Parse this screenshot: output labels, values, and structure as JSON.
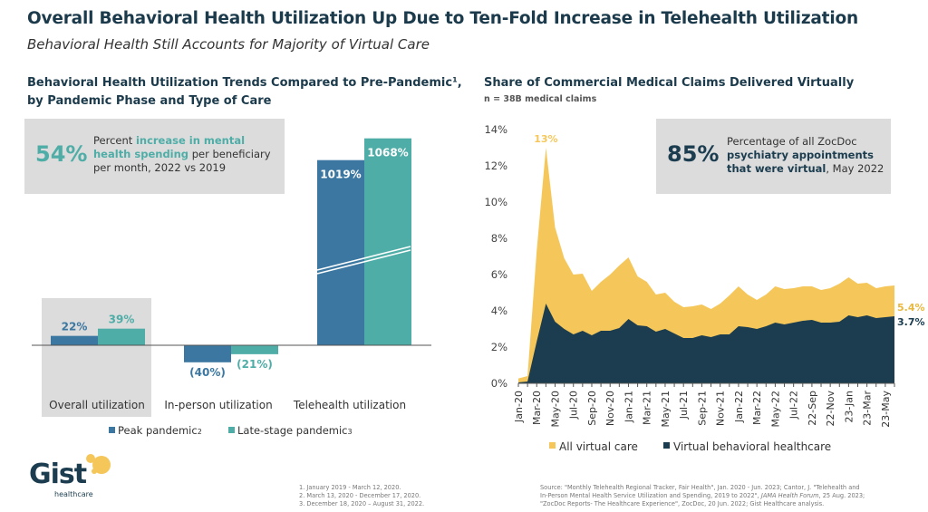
{
  "header": {
    "title": "Overall Behavioral Health Utilization Up Due to Ten-Fold Increase in Telehealth Utilization",
    "subtitle": "Behavioral Health Still Accounts for Majority of Virtual Care"
  },
  "colors": {
    "navy": "#1b3d4f",
    "yellow": "#f5c75a",
    "blue": "#3b77a0",
    "teal": "#4fada7",
    "gray": "#dcdcdc"
  },
  "left": {
    "heading_line1": "Behavioral Health Utilization Trends Compared to Pre-Pandemic¹,",
    "heading_line2": "by Pandemic Phase and Type of Care",
    "callout": {
      "value": "54%",
      "text_pre": "Percent ",
      "text_bold": "increase in mental health spending",
      "text_post": " per beneficiary per month, 2022 vs 2019"
    }
  },
  "right": {
    "heading": "Share of Commercial Medical Claims Delivered Virtually",
    "note": "n = 38B medical claims",
    "callout": {
      "value": "85%",
      "text_pre": "Percentage of all ZocDoc ",
      "text_bold": "psychiatry appointments that were virtual",
      "text_post": ", May 2022"
    }
  },
  "chart_data": [
    {
      "type": "bar",
      "categories": [
        "Overall utilization",
        "In-person utilization",
        "Telehealth utilization"
      ],
      "series": [
        {
          "name": "Peak pandemic",
          "footnote": "2",
          "values": [
            22,
            -40,
            1019
          ],
          "labels": [
            "22%",
            "(40%)",
            "1019%"
          ]
        },
        {
          "name": "Late-stage pandemic",
          "footnote": "3",
          "values": [
            39,
            -21,
            1068
          ],
          "labels": [
            "39%",
            "(21%)",
            "1068%"
          ]
        }
      ],
      "axis_break": "Telehealth utilization",
      "highlighted_category": "Overall utilization",
      "legend": "bottom"
    },
    {
      "type": "area",
      "x": [
        "Jan-20",
        "Feb-20",
        "Mar-20",
        "Apr-20",
        "May-20",
        "Jun-20",
        "Jul-20",
        "Aug-20",
        "Sep-20",
        "Oct-20",
        "Nov-20",
        "Dec-20",
        "Jan-21",
        "Feb-21",
        "Mar-21",
        "Apr-21",
        "May-21",
        "Jun-21",
        "Jul-21",
        "Aug-21",
        "Sep-21",
        "Oct-21",
        "Nov-21",
        "Dec-21",
        "Jan-22",
        "Feb-22",
        "Mar-22",
        "Apr-22",
        "May-22",
        "Jun-22",
        "Jul-22",
        "Aug-22",
        "22-Sep",
        "Oct-22",
        "22-Nov",
        "Dec-22",
        "23-Jan",
        "Feb-23",
        "23-Mar",
        "Apr-23",
        "23-May",
        "Jun-23"
      ],
      "tick_labels": [
        "Jan-20",
        "Mar-20",
        "May-20",
        "Jul-20",
        "Sep-20",
        "Nov-20",
        "Jan-21",
        "Mar-21",
        "May-21",
        "Jul-21",
        "Sep-21",
        "Nov-21",
        "Jan-22",
        "Mar-22",
        "May-22",
        "Jul-22",
        "22-Sep",
        "22-Nov",
        "23-Jan",
        "23-Mar",
        "23-May"
      ],
      "series": [
        {
          "name": "All virtual care",
          "color": "#f5c75a",
          "values": [
            0.27,
            0.4,
            7.3,
            13.0,
            8.6,
            6.9,
            6.0,
            6.05,
            5.1,
            5.6,
            6.0,
            6.5,
            6.95,
            5.9,
            5.6,
            4.9,
            5.0,
            4.5,
            4.2,
            4.25,
            4.35,
            4.1,
            4.4,
            4.85,
            5.35,
            4.9,
            4.6,
            4.9,
            5.35,
            5.2,
            5.25,
            5.35,
            5.35,
            5.15,
            5.25,
            5.5,
            5.85,
            5.5,
            5.55,
            5.25,
            5.35,
            5.4
          ]
        },
        {
          "name": "Virtual behavioral healthcare",
          "color": "#1b3d4f",
          "values": [
            0.05,
            0.1,
            2.3,
            4.4,
            3.4,
            3.0,
            2.7,
            2.9,
            2.65,
            2.9,
            2.9,
            3.05,
            3.55,
            3.2,
            3.15,
            2.85,
            3.0,
            2.75,
            2.5,
            2.5,
            2.65,
            2.55,
            2.7,
            2.7,
            3.15,
            3.1,
            3.0,
            3.15,
            3.35,
            3.25,
            3.35,
            3.45,
            3.5,
            3.35,
            3.35,
            3.4,
            3.75,
            3.65,
            3.75,
            3.6,
            3.65,
            3.7
          ]
        }
      ],
      "annotations": {
        "peak": "13%",
        "last_all": "5.4%",
        "last_behavioral": "3.7%"
      },
      "y_ticks": [
        "0%",
        "2%",
        "4%",
        "6%",
        "8%",
        "10%",
        "12%",
        "14%"
      ],
      "ylim": [
        0,
        14
      ],
      "legend": "bottom"
    }
  ],
  "footnotes": [
    "1.  January 2019 - March 12, 2020.",
    "2.  March 13, 2020 - December 17, 2020.",
    "3.  December 18, 2020 – August 31, 2022."
  ],
  "source": {
    "line1": "Source: \"Monthly Telehealth Regional Tracker, Fair Health\", Jan. 2020 - Jun. 2023; Cantor, J. \"Telehealth and",
    "line2a": "In-Person Mental Health Service Utilization and Spending, 2019 to 2022\", ",
    "line2b": "JAMA Health Forum",
    "line2c": ", 25 Aug. 2023;",
    "line3": "\"ZocDoc Reports- The Healthcare Experience\", ZocDoc, 20 Jun. 2022; Gist Healthcare analysis."
  },
  "logo": {
    "name": "Gist",
    "tagline": "healthcare"
  }
}
